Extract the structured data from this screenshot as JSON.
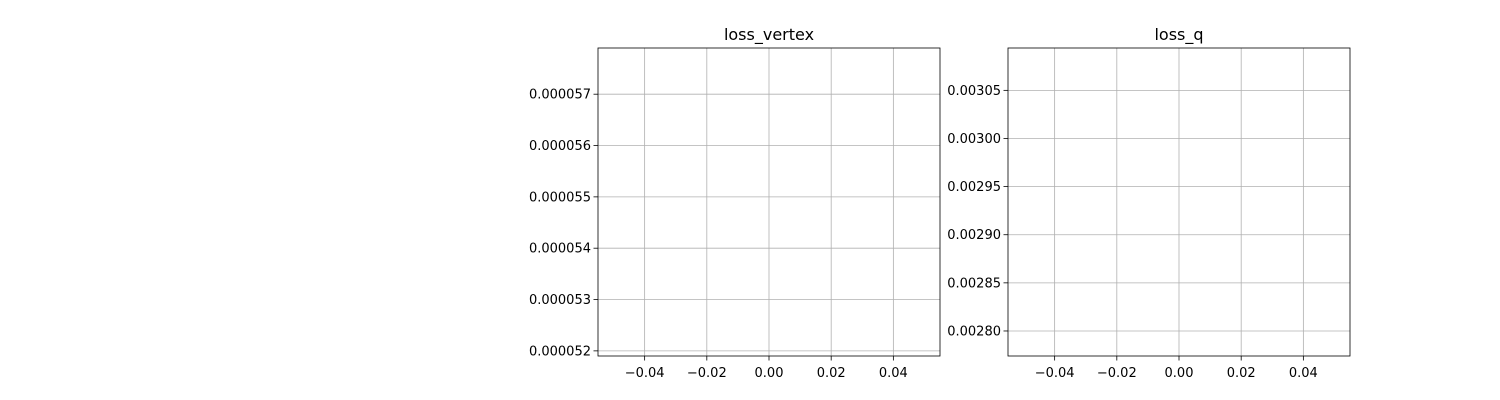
{
  "chart_data": [
    {
      "type": "line",
      "title": "loss_vertex",
      "xlabel": "",
      "ylabel": "",
      "xlim": [
        -0.055,
        0.055
      ],
      "ylim": [
        5.19e-05,
        5.79e-05
      ],
      "x_ticks": [
        -0.04,
        -0.02,
        0.0,
        0.02,
        0.04
      ],
      "x_tick_labels": [
        "−0.04",
        "−0.02",
        "0.00",
        "0.02",
        "0.04"
      ],
      "y_ticks": [
        5.2e-05,
        5.3e-05,
        5.4e-05,
        5.5e-05,
        5.6e-05,
        5.7e-05
      ],
      "y_tick_labels": [
        "0.000052",
        "0.000053",
        "0.000054",
        "0.000055",
        "0.000056",
        "0.000057"
      ],
      "grid": true,
      "series": []
    },
    {
      "type": "line",
      "title": "loss_q",
      "xlabel": "",
      "ylabel": "",
      "xlim": [
        -0.055,
        0.055
      ],
      "ylim": [
        0.002774,
        0.003094
      ],
      "x_ticks": [
        -0.04,
        -0.02,
        0.0,
        0.02,
        0.04
      ],
      "x_tick_labels": [
        "−0.04",
        "−0.02",
        "0.00",
        "0.02",
        "0.04"
      ],
      "y_ticks": [
        0.0028,
        0.00285,
        0.0029,
        0.00295,
        0.003,
        0.00305
      ],
      "y_tick_labels": [
        "0.00280",
        "0.00285",
        "0.00290",
        "0.00295",
        "0.00300",
        "0.00305"
      ],
      "grid": true,
      "series": []
    }
  ]
}
